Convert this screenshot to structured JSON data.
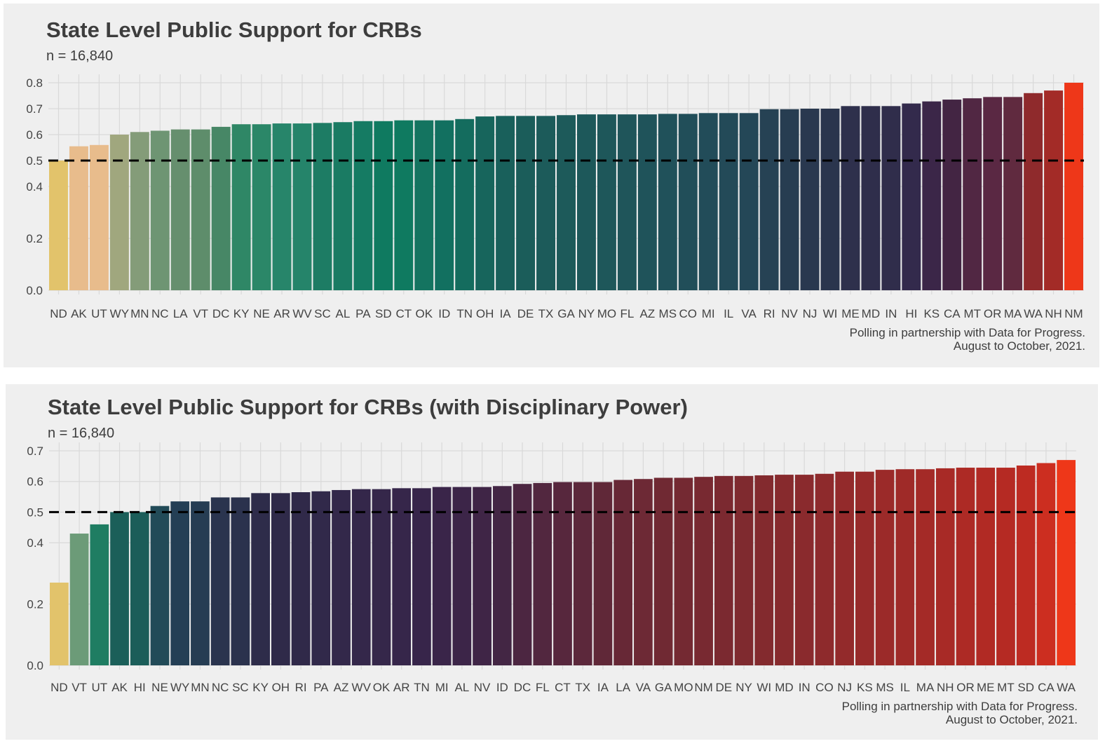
{
  "chart_data": [
    {
      "type": "bar",
      "title": "State Level Public Support for CRBs",
      "subtitle": "n = 16,840",
      "caption_lines": [
        "Polling in partnership with Data for Progress.",
        "August to October, 2021."
      ],
      "categories": [
        "ND",
        "AK",
        "UT",
        "WY",
        "MN",
        "NC",
        "LA",
        "VT",
        "DC",
        "KY",
        "NE",
        "AR",
        "WV",
        "SC",
        "AL",
        "PA",
        "SD",
        "CT",
        "OK",
        "ID",
        "TN",
        "OH",
        "IA",
        "DE",
        "TX",
        "GA",
        "NY",
        "MO",
        "FL",
        "AZ",
        "MS",
        "CO",
        "MI",
        "IL",
        "VA",
        "RI",
        "NV",
        "NJ",
        "WI",
        "ME",
        "MD",
        "IN",
        "HI",
        "KS",
        "CA",
        "MT",
        "OR",
        "MA",
        "WA",
        "NH",
        "NM"
      ],
      "values": [
        0.5,
        0.555,
        0.56,
        0.6,
        0.61,
        0.615,
        0.62,
        0.62,
        0.63,
        0.64,
        0.64,
        0.643,
        0.643,
        0.645,
        0.648,
        0.652,
        0.652,
        0.655,
        0.655,
        0.655,
        0.66,
        0.67,
        0.672,
        0.672,
        0.672,
        0.675,
        0.678,
        0.678,
        0.678,
        0.678,
        0.68,
        0.68,
        0.683,
        0.683,
        0.683,
        0.698,
        0.698,
        0.7,
        0.7,
        0.71,
        0.71,
        0.71,
        0.72,
        0.728,
        0.735,
        0.74,
        0.745,
        0.745,
        0.76,
        0.77,
        0.8
      ],
      "reference_line": 0.5,
      "yticks": [
        "0.0",
        "0.2",
        "0.4",
        "0.5",
        "0.6",
        "0.7",
        "0.8"
      ],
      "ylim": [
        0,
        0.8
      ],
      "xlabel": "",
      "ylabel": "",
      "grid": true,
      "colors": {
        "palette": [
          "#e2c36b",
          "#e8bc8c",
          "#e8bc8c",
          "#a0a77e",
          "#849c79",
          "#6e9573",
          "#668f6e",
          "#5e8d6b",
          "#478766",
          "#2f8766",
          "#2b8768",
          "#27856a",
          "#25846a",
          "#1d7c64",
          "#1a7b63",
          "#157b63",
          "#0f7a60",
          "#0f7a60",
          "#147460",
          "#127060",
          "#146c5e",
          "#17655c",
          "#19605b",
          "#1b5d5a",
          "#1c5b5a",
          "#1d5a5a",
          "#1d585a",
          "#1e575a",
          "#1f555a",
          "#1f535a",
          "#20515a",
          "#214e59",
          "#224c59",
          "#234a58",
          "#244757",
          "#264254",
          "#273d51",
          "#29384f",
          "#2a354d",
          "#2e304c",
          "#2f2e4b",
          "#302d4b",
          "#332a4c",
          "#3b2648",
          "#432543",
          "#512743",
          "#5a2843",
          "#602a3f",
          "#8f2a2c",
          "#a32b27",
          "#ee3719"
        ],
        "panel_bg": "#efefef",
        "grid": "#d9d9d9",
        "reference_line": "#000000"
      }
    },
    {
      "type": "bar",
      "title": "State Level Public Support for CRBs (with Disciplinary Power)",
      "subtitle": "n = 16,840",
      "caption_lines": [
        "Polling in partnership with Data for Progress.",
        "August to October, 2021."
      ],
      "categories": [
        "ND",
        "VT",
        "UT",
        "AK",
        "HI",
        "NE",
        "WY",
        "MN",
        "NC",
        "SC",
        "KY",
        "OH",
        "RI",
        "PA",
        "AZ",
        "WV",
        "OK",
        "AR",
        "TN",
        "MI",
        "AL",
        "NV",
        "ID",
        "DC",
        "FL",
        "CT",
        "TX",
        "IA",
        "LA",
        "VA",
        "GA",
        "MO",
        "NM",
        "DE",
        "NY",
        "WI",
        "MD",
        "IN",
        "CO",
        "NJ",
        "KS",
        "MS",
        "IL",
        "MA",
        "NH",
        "OR",
        "ME",
        "MT",
        "SD",
        "CA",
        "WA"
      ],
      "values": [
        0.27,
        0.43,
        0.46,
        0.5,
        0.5,
        0.52,
        0.535,
        0.535,
        0.548,
        0.548,
        0.562,
        0.562,
        0.565,
        0.568,
        0.572,
        0.575,
        0.575,
        0.578,
        0.578,
        0.582,
        0.582,
        0.582,
        0.585,
        0.592,
        0.595,
        0.598,
        0.598,
        0.598,
        0.605,
        0.608,
        0.612,
        0.612,
        0.615,
        0.618,
        0.618,
        0.62,
        0.622,
        0.622,
        0.625,
        0.632,
        0.632,
        0.638,
        0.64,
        0.64,
        0.643,
        0.645,
        0.645,
        0.645,
        0.652,
        0.66,
        0.67
      ],
      "reference_line": 0.5,
      "yticks": [
        "0.0",
        "0.2",
        "0.4",
        "0.5",
        "0.6",
        "0.7"
      ],
      "ylim": [
        0,
        0.7
      ],
      "xlabel": "",
      "ylabel": "",
      "grid": true,
      "colors": {
        "palette": [
          "#e2c36b",
          "#6c9b78",
          "#1f7d62",
          "#1b5f59",
          "#1b5d59",
          "#224b58",
          "#243f55",
          "#263d53",
          "#2a344e",
          "#2b324d",
          "#2e2c4a",
          "#2f2a49",
          "#302949",
          "#31294a",
          "#33284a",
          "#34274a",
          "#35274a",
          "#36264a",
          "#37254a",
          "#3a2549",
          "#3c2548",
          "#3f2546",
          "#432644",
          "#4c2641",
          "#52273f",
          "#57273d",
          "#5c283b",
          "#602838",
          "#672836",
          "#6d2935",
          "#702933",
          "#742932",
          "#782931",
          "#7b2930",
          "#7f2a2f",
          "#832a2e",
          "#872a2d",
          "#8a2a2d",
          "#8e2a2c",
          "#932a2b",
          "#972a2a",
          "#9b2a29",
          "#9f2a28",
          "#a42a27",
          "#a82a26",
          "#ad2a25",
          "#b12a24",
          "#b52a23",
          "#bd2b22",
          "#cc2e20",
          "#ee3719"
        ],
        "panel_bg": "#efefef",
        "grid": "#d9d9d9",
        "reference_line": "#000000"
      }
    }
  ]
}
